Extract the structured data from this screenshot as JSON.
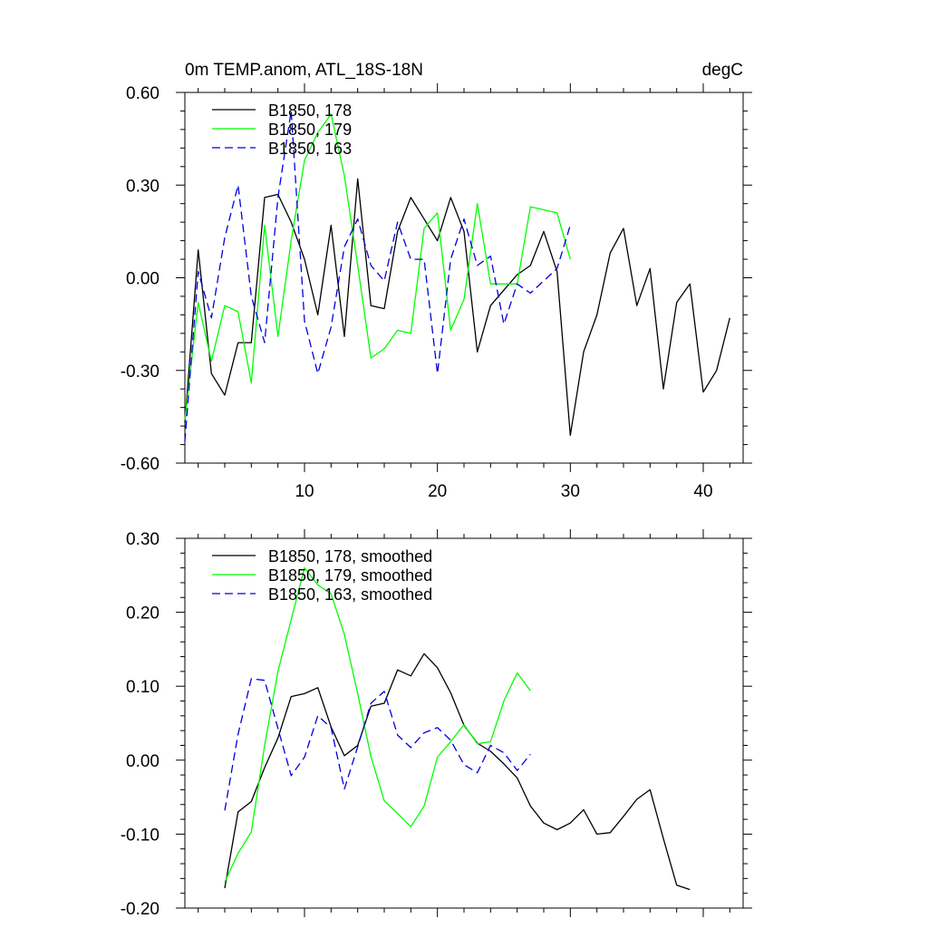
{
  "figure": {
    "title_left": "0m TEMP.anom, ATL_18S-18N",
    "title_right": "degC"
  },
  "chart_data": [
    {
      "type": "line",
      "title": "0m TEMP.anom, ATL_18S-18N",
      "unit": "degC",
      "xlim": [
        1,
        43
      ],
      "ylim": [
        -0.6,
        0.6
      ],
      "x_ticks": [
        10,
        20,
        30,
        40
      ],
      "x_tick_labels": [
        "10",
        "20",
        "30",
        "40"
      ],
      "y_ticks": [
        -0.6,
        -0.3,
        0.0,
        0.3,
        0.6
      ],
      "y_tick_labels": [
        "-0.60",
        "-0.30",
        "0.00",
        "0.30",
        "0.60"
      ],
      "legend_position": "top-left",
      "series": [
        {
          "name": "B1850, 178",
          "color": "#000000",
          "dash": "solid",
          "x": [
            1,
            2,
            3,
            4,
            5,
            6,
            7,
            8,
            9,
            10,
            11,
            12,
            13,
            14,
            15,
            16,
            17,
            18,
            19,
            20,
            21,
            22,
            23,
            24,
            25,
            26,
            27,
            28,
            29,
            30,
            31,
            32,
            33,
            34,
            35,
            36,
            37,
            38,
            39,
            40,
            41,
            42
          ],
          "values": [
            -0.47,
            0.09,
            -0.31,
            -0.38,
            -0.21,
            -0.21,
            0.26,
            0.27,
            0.18,
            0.06,
            -0.12,
            0.17,
            -0.19,
            0.32,
            -0.09,
            -0.1,
            0.15,
            0.26,
            0.19,
            0.12,
            0.26,
            0.15,
            -0.24,
            -0.09,
            -0.04,
            0.01,
            0.04,
            0.15,
            0.02,
            -0.51,
            -0.24,
            -0.12,
            0.08,
            0.16,
            -0.09,
            0.03,
            -0.36,
            -0.08,
            -0.02,
            -0.37,
            -0.3,
            -0.13
          ]
        },
        {
          "name": "B1850, 179",
          "color": "#00ff00",
          "dash": "solid",
          "x": [
            1,
            2,
            3,
            4,
            5,
            6,
            7,
            8,
            9,
            10,
            11,
            12,
            13,
            14,
            15,
            16,
            17,
            18,
            19,
            20,
            21,
            22,
            23,
            24,
            25,
            26,
            27,
            28,
            29,
            30
          ],
          "values": [
            -0.46,
            -0.08,
            -0.27,
            -0.09,
            -0.11,
            -0.34,
            0.17,
            -0.19,
            0.12,
            0.38,
            0.47,
            0.53,
            0.33,
            0.04,
            -0.26,
            -0.23,
            -0.17,
            -0.18,
            0.16,
            0.21,
            -0.17,
            -0.07,
            0.24,
            -0.02,
            -0.02,
            -0.02,
            0.23,
            0.22,
            0.21,
            0.06
          ]
        },
        {
          "name": "B1850, 163",
          "color": "#0000dd",
          "dash": "dashed",
          "x": [
            1,
            2,
            3,
            4,
            5,
            6,
            7,
            8,
            9,
            10,
            11,
            12,
            13,
            14,
            15,
            16,
            17,
            18,
            19,
            20,
            21,
            22,
            23,
            24,
            25,
            26,
            27,
            28,
            29,
            30
          ],
          "values": [
            -0.53,
            0.02,
            -0.13,
            0.13,
            0.3,
            -0.06,
            -0.21,
            0.26,
            0.54,
            -0.14,
            -0.31,
            -0.16,
            0.1,
            0.19,
            0.04,
            -0.01,
            0.18,
            0.06,
            0.06,
            -0.31,
            0.06,
            0.19,
            0.04,
            0.07,
            -0.15,
            -0.02,
            -0.05,
            -0.01,
            0.03,
            0.17
          ]
        }
      ]
    },
    {
      "type": "line",
      "xlim": [
        1,
        43
      ],
      "ylim": [
        -0.2,
        0.3
      ],
      "x_ticks": [
        10,
        20,
        30,
        40
      ],
      "y_ticks": [
        -0.2,
        -0.1,
        0.0,
        0.1,
        0.2,
        0.3
      ],
      "y_tick_labels": [
        "-0.20",
        "-0.10",
        "0.00",
        "0.10",
        "0.20",
        "0.30"
      ],
      "legend_position": "top-left",
      "series": [
        {
          "name": "B1850, 178, smoothed",
          "color": "#000000",
          "dash": "solid",
          "x": [
            4,
            5,
            6,
            7,
            8,
            9,
            10,
            11,
            12,
            13,
            14,
            15,
            16,
            17,
            18,
            19,
            20,
            21,
            22,
            23,
            24,
            25,
            26,
            27,
            28,
            29,
            30,
            31,
            32,
            33,
            34,
            35,
            36,
            37,
            38,
            39
          ],
          "values": [
            -0.173,
            -0.07,
            -0.056,
            -0.01,
            0.03,
            0.086,
            0.09,
            0.098,
            0.045,
            0.006,
            0.02,
            0.073,
            0.077,
            0.122,
            0.114,
            0.144,
            0.125,
            0.091,
            0.047,
            0.023,
            0.012,
            -0.005,
            -0.024,
            -0.062,
            -0.085,
            -0.094,
            -0.085,
            -0.067,
            -0.1,
            -0.098,
            -0.076,
            -0.053,
            -0.04,
            -0.106,
            -0.169,
            -0.175
          ]
        },
        {
          "name": "B1850, 179, smoothed",
          "color": "#00ff00",
          "dash": "solid",
          "x": [
            4,
            5,
            6,
            7,
            8,
            9,
            10,
            11,
            12,
            13,
            14,
            15,
            16,
            17,
            18,
            19,
            20,
            21,
            22,
            23,
            24,
            25,
            26,
            27
          ],
          "values": [
            -0.165,
            -0.126,
            -0.097,
            0.02,
            0.12,
            0.19,
            0.26,
            0.237,
            0.225,
            0.17,
            0.09,
            0.005,
            -0.055,
            -0.072,
            -0.09,
            -0.062,
            0.004,
            0.025,
            0.048,
            0.022,
            0.025,
            0.08,
            0.118,
            0.094
          ]
        },
        {
          "name": "B1850, 163, smoothed",
          "color": "#0000dd",
          "dash": "dashed",
          "x": [
            4,
            5,
            6,
            7,
            8,
            9,
            10,
            11,
            12,
            13,
            14,
            15,
            16,
            17,
            18,
            19,
            20,
            21,
            22,
            23,
            24,
            25,
            26,
            27
          ],
          "values": [
            -0.068,
            0.035,
            0.11,
            0.108,
            0.043,
            -0.021,
            0.004,
            0.06,
            0.044,
            -0.039,
            0.018,
            0.077,
            0.093,
            0.034,
            0.017,
            0.037,
            0.044,
            0.027,
            -0.006,
            -0.017,
            0.02,
            0.01,
            -0.014,
            0.008
          ]
        }
      ]
    }
  ]
}
